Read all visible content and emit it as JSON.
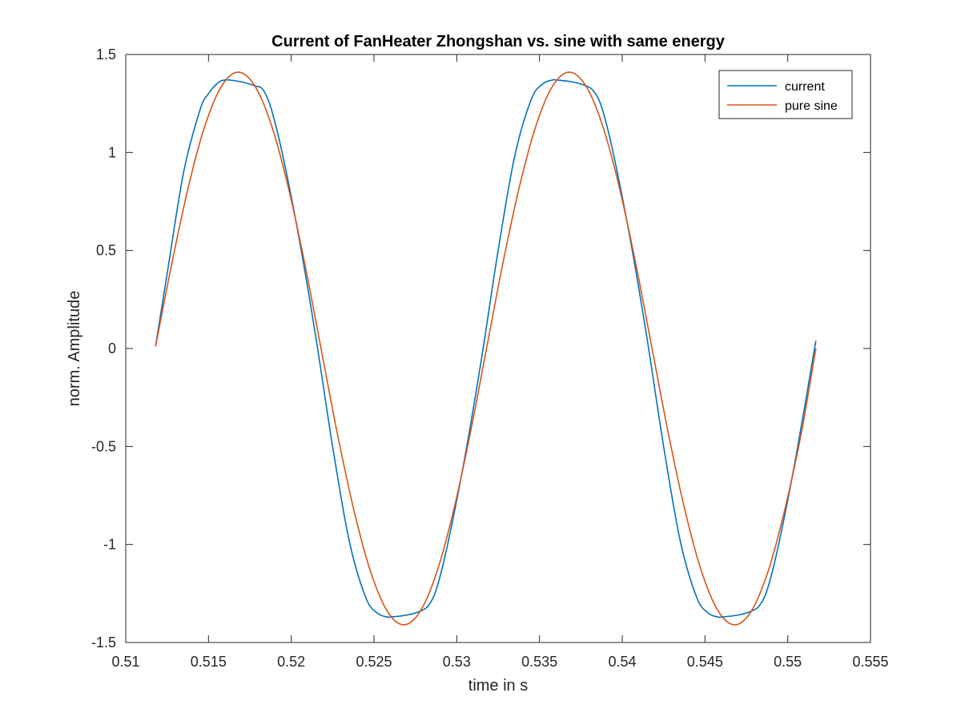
{
  "chart_data": {
    "type": "line",
    "title": "Current of FanHeater Zhongshan vs. sine with same energy",
    "xlabel": "time in s",
    "ylabel": "norm. Amplitude",
    "xlim": [
      0.51,
      0.555
    ],
    "ylim": [
      -1.5,
      1.5
    ],
    "xticks": [
      0.51,
      0.515,
      0.52,
      0.525,
      0.53,
      0.535,
      0.54,
      0.545,
      0.55,
      0.555
    ],
    "xtick_labels": [
      "0.51",
      "0.515",
      "0.52",
      "0.525",
      "0.53",
      "0.535",
      "0.54",
      "0.545",
      "0.55",
      "0.555"
    ],
    "yticks": [
      -1.5,
      -1,
      -0.5,
      0,
      0.5,
      1,
      1.5
    ],
    "ytick_labels": [
      "-1.5",
      "-1",
      "-0.5",
      "0",
      "0.5",
      "1",
      "1.5"
    ],
    "grid": false,
    "legend_position": "top-right",
    "series": [
      {
        "name": "current",
        "color": "#0072BD",
        "x": [
          0.5118,
          0.5125,
          0.5135,
          0.5145,
          0.515,
          0.5155,
          0.516,
          0.517,
          0.5178,
          0.5183,
          0.5188,
          0.5195,
          0.5205,
          0.5215,
          0.5225,
          0.5235,
          0.5245,
          0.5252,
          0.5258,
          0.526,
          0.527,
          0.5278,
          0.5283,
          0.5288,
          0.5295,
          0.5305,
          0.5315,
          0.5325,
          0.5335,
          0.5345,
          0.5352,
          0.5358,
          0.536,
          0.537,
          0.5378,
          0.5383,
          0.5388,
          0.5395,
          0.5405,
          0.5415,
          0.5425,
          0.5435,
          0.5445,
          0.5452,
          0.5458,
          0.546,
          0.547,
          0.5478,
          0.5483,
          0.5488,
          0.5495,
          0.5505,
          0.5517
        ],
        "y": [
          0.01,
          0.38,
          0.9,
          1.22,
          1.3,
          1.35,
          1.37,
          1.36,
          1.34,
          1.32,
          1.22,
          0.98,
          0.55,
          0.05,
          -0.5,
          -0.98,
          -1.27,
          -1.35,
          -1.37,
          -1.37,
          -1.36,
          -1.34,
          -1.31,
          -1.22,
          -0.98,
          -0.55,
          -0.05,
          0.5,
          0.98,
          1.27,
          1.35,
          1.37,
          1.37,
          1.36,
          1.34,
          1.31,
          1.22,
          0.98,
          0.55,
          0.05,
          -0.5,
          -0.98,
          -1.27,
          -1.35,
          -1.37,
          -1.37,
          -1.36,
          -1.34,
          -1.31,
          -1.22,
          -0.98,
          -0.55,
          0.04
        ]
      },
      {
        "name": "pure sine",
        "color": "#D95319",
        "x": [
          0.5118,
          0.5128,
          0.5138,
          0.5148,
          0.5158,
          0.5168,
          0.5178,
          0.5188,
          0.5198,
          0.5208,
          0.5218,
          0.5228,
          0.5238,
          0.5248,
          0.5258,
          0.5268,
          0.5278,
          0.5288,
          0.5298,
          0.5308,
          0.5318,
          0.5328,
          0.5338,
          0.5348,
          0.5358,
          0.5368,
          0.5378,
          0.5388,
          0.5398,
          0.5408,
          0.5418,
          0.5428,
          0.5438,
          0.5448,
          0.5458,
          0.5468,
          0.5478,
          0.5488,
          0.5498,
          0.5508,
          0.5517
        ],
        "y": [
          0.01,
          0.44,
          0.83,
          1.14,
          1.34,
          1.41,
          1.34,
          1.14,
          0.83,
          0.44,
          0.0,
          -0.44,
          -0.83,
          -1.14,
          -1.34,
          -1.41,
          -1.34,
          -1.14,
          -0.83,
          -0.44,
          0.0,
          0.44,
          0.83,
          1.14,
          1.34,
          1.41,
          1.34,
          1.14,
          0.83,
          0.44,
          0.0,
          -0.44,
          -0.83,
          -1.14,
          -1.34,
          -1.41,
          -1.34,
          -1.14,
          -0.83,
          -0.44,
          0.0
        ]
      }
    ]
  }
}
